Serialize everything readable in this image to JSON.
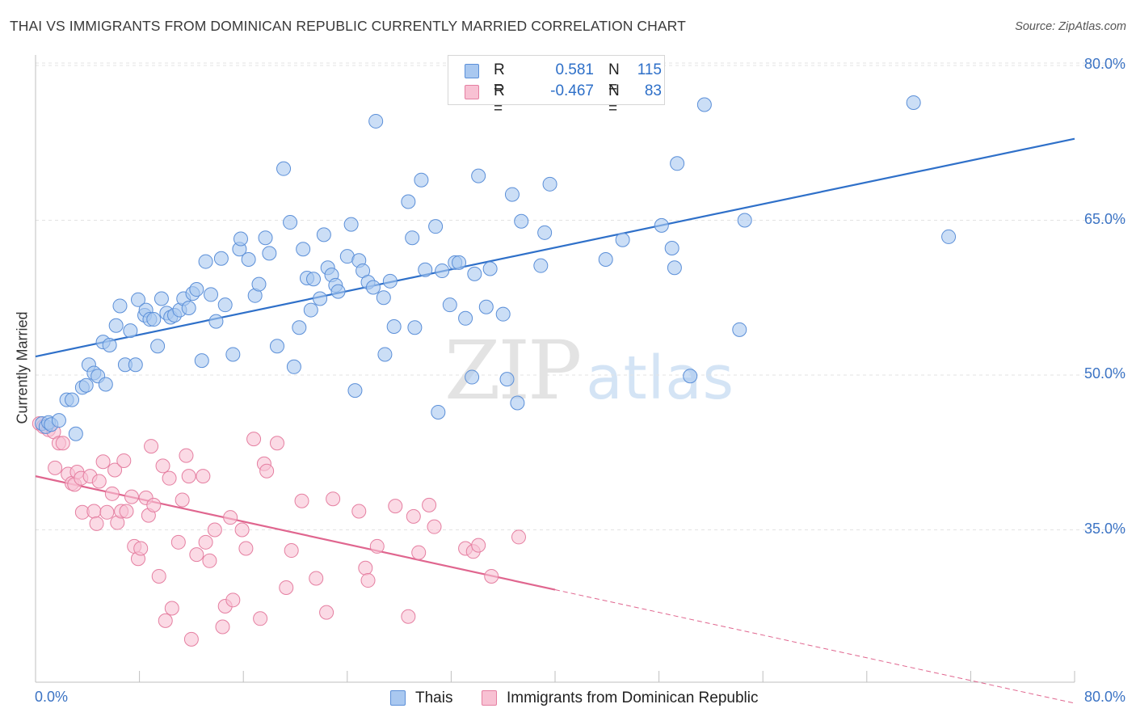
{
  "title": "THAI VS IMMIGRANTS FROM DOMINICAN REPUBLIC CURRENTLY MARRIED CORRELATION CHART",
  "source": "Source: ZipAtlas.com",
  "watermark": {
    "zip": "ZIP",
    "atlas": "atlas"
  },
  "legend": {
    "rows": [
      {
        "r_label": "R =",
        "r_value": "0.581",
        "n_label": "N =",
        "n_value": "115",
        "color": "#a9c8f0",
        "border": "#5b8fd8"
      },
      {
        "r_label": "R =",
        "r_value": "-0.467",
        "n_label": "N =",
        "n_value": "83",
        "color": "#f8c1d3",
        "border": "#e57fa1"
      }
    ]
  },
  "chart_data": {
    "type": "scatter",
    "title": "THAI VS IMMIGRANTS FROM DOMINICAN REPUBLIC CURRENTLY MARRIED CORRELATION CHART",
    "xlabel": "",
    "ylabel": "Currently Married",
    "xlim": [
      0,
      80
    ],
    "ylim": [
      20,
      82
    ],
    "x_tick_labels": [
      "0.0%",
      "80.0%"
    ],
    "y_ticks": [
      35,
      50,
      65,
      80
    ],
    "y_tick_labels": [
      "35.0%",
      "50.0%",
      "65.0%",
      "80.0%"
    ],
    "grid": true,
    "legend_position": "bottom",
    "series": [
      {
        "name": "Thais",
        "color": "#a9c8f0",
        "stroke": "#5b8fd8",
        "trend": {
          "x": [
            0,
            80
          ],
          "y": [
            51.8,
            72.9
          ],
          "color": "#2f70c9",
          "dashed_from": null
        },
        "points": [
          [
            0.5,
            45.3
          ],
          [
            0.8,
            45.0
          ],
          [
            1.0,
            45.4
          ],
          [
            1.2,
            45.2
          ],
          [
            1.8,
            45.6
          ],
          [
            2.4,
            47.6
          ],
          [
            2.8,
            47.6
          ],
          [
            3.1,
            44.3
          ],
          [
            3.6,
            48.8
          ],
          [
            3.9,
            49.0
          ],
          [
            4.1,
            51.0
          ],
          [
            4.5,
            50.2
          ],
          [
            4.8,
            49.9
          ],
          [
            5.4,
            49.1
          ],
          [
            5.2,
            53.2
          ],
          [
            5.7,
            52.9
          ],
          [
            6.2,
            54.8
          ],
          [
            6.5,
            56.7
          ],
          [
            6.9,
            51.0
          ],
          [
            7.3,
            54.3
          ],
          [
            7.7,
            51.0
          ],
          [
            7.9,
            57.3
          ],
          [
            8.4,
            55.8
          ],
          [
            8.5,
            56.3
          ],
          [
            8.8,
            55.4
          ],
          [
            9.1,
            55.4
          ],
          [
            9.4,
            52.8
          ],
          [
            9.7,
            57.4
          ],
          [
            10.1,
            56.0
          ],
          [
            10.4,
            55.6
          ],
          [
            10.7,
            55.8
          ],
          [
            11.1,
            56.3
          ],
          [
            11.4,
            57.4
          ],
          [
            11.8,
            56.5
          ],
          [
            12.1,
            57.9
          ],
          [
            12.4,
            58.3
          ],
          [
            12.8,
            51.4
          ],
          [
            13.1,
            61.0
          ],
          [
            13.5,
            57.8
          ],
          [
            13.9,
            55.2
          ],
          [
            14.3,
            61.3
          ],
          [
            14.6,
            56.8
          ],
          [
            15.2,
            52.0
          ],
          [
            15.7,
            62.2
          ],
          [
            15.8,
            63.2
          ],
          [
            16.4,
            61.2
          ],
          [
            16.9,
            57.7
          ],
          [
            17.2,
            58.8
          ],
          [
            17.7,
            63.3
          ],
          [
            18.0,
            61.8
          ],
          [
            18.6,
            52.8
          ],
          [
            19.1,
            70.0
          ],
          [
            19.6,
            64.8
          ],
          [
            19.9,
            50.8
          ],
          [
            20.3,
            54.6
          ],
          [
            20.6,
            62.2
          ],
          [
            20.9,
            59.4
          ],
          [
            21.2,
            56.3
          ],
          [
            21.4,
            59.3
          ],
          [
            21.9,
            57.4
          ],
          [
            22.2,
            63.6
          ],
          [
            22.5,
            60.4
          ],
          [
            22.8,
            59.7
          ],
          [
            23.1,
            58.7
          ],
          [
            23.3,
            58.1
          ],
          [
            24.0,
            61.5
          ],
          [
            24.3,
            64.6
          ],
          [
            24.6,
            48.5
          ],
          [
            24.9,
            61.1
          ],
          [
            25.2,
            60.1
          ],
          [
            25.6,
            59.0
          ],
          [
            26.0,
            58.5
          ],
          [
            26.2,
            74.6
          ],
          [
            26.8,
            57.5
          ],
          [
            26.9,
            52.0
          ],
          [
            27.3,
            59.1
          ],
          [
            27.6,
            54.7
          ],
          [
            28.7,
            66.8
          ],
          [
            29.0,
            63.3
          ],
          [
            29.2,
            54.6
          ],
          [
            29.7,
            68.9
          ],
          [
            30.0,
            60.2
          ],
          [
            30.8,
            64.4
          ],
          [
            31.0,
            46.4
          ],
          [
            31.3,
            60.1
          ],
          [
            31.9,
            56.8
          ],
          [
            32.3,
            60.9
          ],
          [
            32.6,
            60.9
          ],
          [
            33.1,
            55.5
          ],
          [
            33.6,
            49.8
          ],
          [
            33.8,
            59.8
          ],
          [
            34.1,
            69.3
          ],
          [
            34.7,
            56.6
          ],
          [
            35.0,
            60.3
          ],
          [
            36.0,
            55.9
          ],
          [
            36.3,
            49.6
          ],
          [
            36.7,
            67.5
          ],
          [
            37.1,
            47.3
          ],
          [
            37.4,
            64.9
          ],
          [
            38.9,
            60.6
          ],
          [
            39.2,
            63.8
          ],
          [
            39.6,
            68.5
          ],
          [
            43.9,
            61.2
          ],
          [
            45.2,
            63.1
          ],
          [
            48.2,
            64.5
          ],
          [
            49.0,
            62.3
          ],
          [
            49.2,
            60.4
          ],
          [
            49.4,
            70.5
          ],
          [
            50.4,
            49.9
          ],
          [
            51.5,
            76.2
          ],
          [
            54.2,
            54.4
          ],
          [
            54.6,
            65.0
          ],
          [
            67.6,
            76.4
          ],
          [
            70.3,
            63.4
          ]
        ]
      },
      {
        "name": "Immigrants from Dominican Republic",
        "color": "#f8c1d3",
        "stroke": "#e57fa1",
        "trend": {
          "x": [
            0,
            40,
            80
          ],
          "y": [
            40.2,
            29.2,
            18.2
          ],
          "color": "#e0668f",
          "dashed_from": 40
        },
        "points": [
          [
            0.3,
            45.3
          ],
          [
            0.6,
            45.0
          ],
          [
            1.0,
            44.7
          ],
          [
            1.4,
            44.5
          ],
          [
            1.8,
            43.4
          ],
          [
            1.5,
            41.0
          ],
          [
            2.1,
            43.4
          ],
          [
            2.5,
            40.4
          ],
          [
            2.8,
            39.5
          ],
          [
            3.0,
            39.4
          ],
          [
            3.2,
            40.6
          ],
          [
            3.5,
            40.0
          ],
          [
            3.6,
            36.7
          ],
          [
            4.2,
            40.2
          ],
          [
            4.5,
            36.8
          ],
          [
            4.7,
            35.6
          ],
          [
            4.9,
            39.7
          ],
          [
            5.2,
            41.6
          ],
          [
            5.5,
            36.7
          ],
          [
            5.9,
            38.5
          ],
          [
            6.1,
            40.8
          ],
          [
            6.3,
            35.7
          ],
          [
            6.6,
            36.8
          ],
          [
            6.8,
            41.7
          ],
          [
            7.0,
            36.8
          ],
          [
            7.4,
            38.2
          ],
          [
            7.6,
            33.4
          ],
          [
            7.9,
            32.2
          ],
          [
            8.1,
            33.2
          ],
          [
            8.5,
            38.1
          ],
          [
            8.7,
            36.4
          ],
          [
            8.9,
            43.1
          ],
          [
            9.1,
            37.4
          ],
          [
            9.5,
            30.5
          ],
          [
            9.8,
            41.2
          ],
          [
            10.0,
            26.2
          ],
          [
            10.3,
            40.0
          ],
          [
            10.5,
            27.4
          ],
          [
            11.0,
            33.8
          ],
          [
            11.3,
            37.9
          ],
          [
            11.6,
            42.2
          ],
          [
            11.8,
            40.2
          ],
          [
            12.0,
            24.4
          ],
          [
            12.4,
            32.6
          ],
          [
            12.9,
            40.2
          ],
          [
            13.1,
            33.8
          ],
          [
            13.4,
            32.0
          ],
          [
            13.8,
            35.0
          ],
          [
            14.4,
            25.6
          ],
          [
            14.6,
            27.6
          ],
          [
            15.0,
            36.2
          ],
          [
            15.2,
            28.2
          ],
          [
            15.9,
            35.0
          ],
          [
            16.2,
            33.2
          ],
          [
            16.8,
            43.8
          ],
          [
            17.3,
            26.4
          ],
          [
            17.6,
            41.4
          ],
          [
            17.8,
            40.7
          ],
          [
            18.6,
            43.4
          ],
          [
            19.3,
            29.4
          ],
          [
            19.7,
            33.0
          ],
          [
            20.5,
            37.8
          ],
          [
            21.6,
            30.3
          ],
          [
            22.4,
            27.0
          ],
          [
            22.9,
            38.0
          ],
          [
            24.9,
            36.8
          ],
          [
            25.4,
            31.3
          ],
          [
            25.6,
            30.1
          ],
          [
            26.3,
            33.4
          ],
          [
            27.7,
            37.3
          ],
          [
            28.7,
            26.6
          ],
          [
            29.1,
            36.3
          ],
          [
            29.5,
            32.8
          ],
          [
            30.3,
            37.4
          ],
          [
            30.7,
            35.3
          ],
          [
            33.1,
            33.2
          ],
          [
            33.7,
            32.9
          ],
          [
            34.1,
            33.5
          ],
          [
            35.1,
            30.5
          ],
          [
            37.2,
            34.3
          ]
        ]
      }
    ]
  },
  "bottom_legend": [
    {
      "label": "Thais",
      "color": "#a9c8f0",
      "border": "#5b8fd8"
    },
    {
      "label": "Immigrants from Dominican Republic",
      "color": "#f8c1d3",
      "border": "#e57fa1"
    }
  ]
}
